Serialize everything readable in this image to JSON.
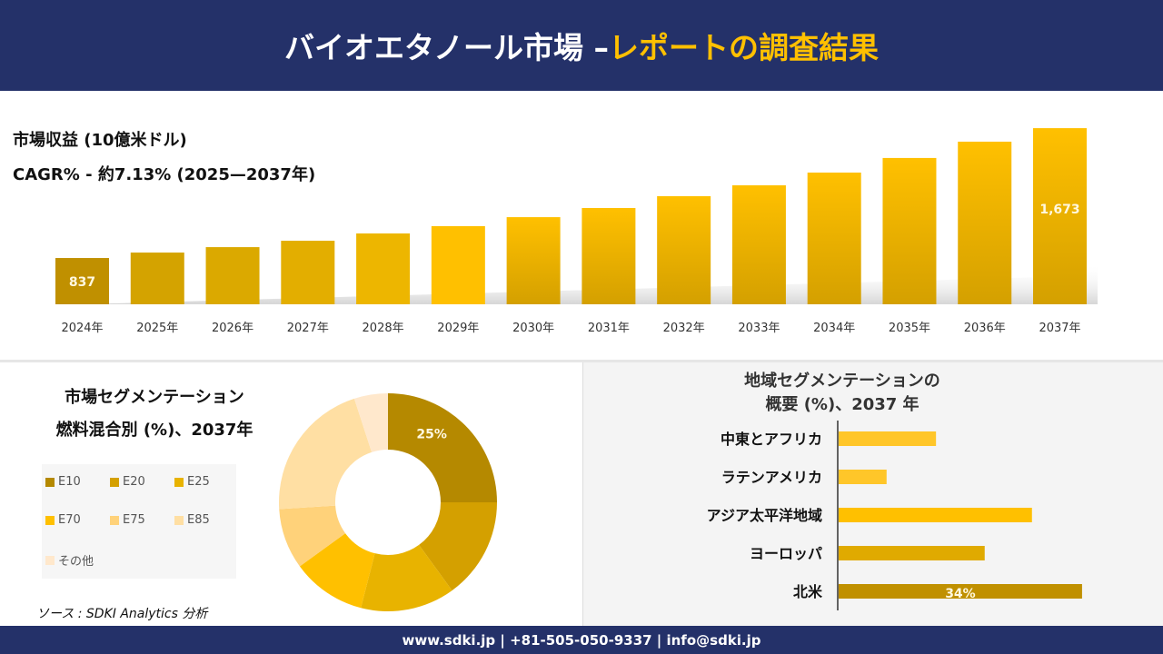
{
  "header": {
    "title_main": "バイオエタノール市場 –",
    "title_accent": "レポートの調査結果"
  },
  "colors": {
    "navy": "#243169",
    "accent": "#ffc000"
  },
  "chart_data": [
    {
      "type": "bar",
      "title": "市場収益 (10億米ドル)",
      "subtitle": "CAGR% - 約7.13% (2025—2037年)",
      "categories": [
        "2024年",
        "2025年",
        "2026年",
        "2027年",
        "2028年",
        "2029年",
        "2030年",
        "2031年",
        "2032年",
        "2033年",
        "2034年",
        "2035年",
        "2036年",
        "2037年"
      ],
      "values": [
        837,
        872,
        907,
        948,
        995,
        1042,
        1100,
        1159,
        1235,
        1305,
        1387,
        1481,
        1586,
        1673
      ],
      "data_labels": {
        "0": "837",
        "13": "1,673"
      },
      "colors": [
        "#c09000",
        "#d4a300",
        "#dba900",
        "#e3ae00",
        "#edb600",
        "#ffc000",
        "grad",
        "grad",
        "grad",
        "grad",
        "grad",
        "grad",
        "grad",
        "grad"
      ]
    },
    {
      "type": "pie",
      "title_line1": "市場セグメンテーション",
      "title_line2": "燃料混合別 (%)、2037年",
      "labels": [
        "E10",
        "E20",
        "E25",
        "E70",
        "E75",
        "E85",
        "その他"
      ],
      "values": [
        25,
        15,
        14,
        11,
        9,
        21,
        5
      ],
      "colors": [
        "#b58900",
        "#d4a000",
        "#e8b300",
        "#ffc000",
        "#ffd27a",
        "#ffdfa3",
        "#ffe8cc"
      ],
      "data_labels": {
        "0": "25%"
      },
      "legend": "left"
    },
    {
      "type": "bar",
      "orientation": "horizontal",
      "title_line1": "地域セグメンテーションの",
      "title_line2": "概要 (%)、2037 年",
      "categories": [
        "中東とアフリカ",
        "ラテンアメリカ",
        "アジア太平洋地域",
        "ヨーロッパ",
        "北米"
      ],
      "values": [
        13.6,
        6.7,
        27,
        20.4,
        34
      ],
      "colors": [
        "#ffc629",
        "#ffc629",
        "#ffc000",
        "#e0aa00",
        "#c09000"
      ],
      "data_labels": {
        "4": "34%"
      }
    }
  ],
  "source": "ソース : SDKI Analytics 分析",
  "footer": "www.sdki.jp | +81-505-050-9337 | info@sdki.jp"
}
